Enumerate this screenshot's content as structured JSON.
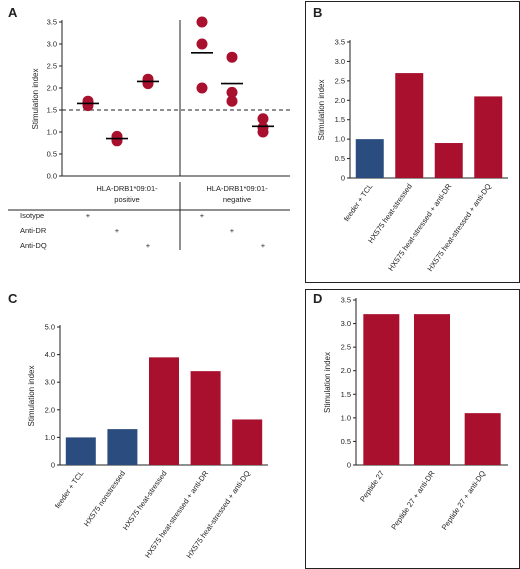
{
  "colors": {
    "red": "#a8102e",
    "blue": "#2b4c7e",
    "axis": "#222222"
  },
  "chart_data": [
    {
      "panel": "A",
      "type": "scatter",
      "ylabel": "Stimulation index",
      "ylim": [
        0,
        3.5
      ],
      "yticks": [
        "0.0",
        "0.5",
        "1.0",
        "1.5",
        "2.0",
        "2.5",
        "3.0",
        "3.5"
      ],
      "threshold": 1.5,
      "groups": [
        "HLA-DRB1*09:01-positive",
        "HLA-DRB1*09:01-negative"
      ],
      "row_labels": [
        "Isotype",
        "Anti-DR",
        "Anti-DQ"
      ],
      "plus": "+",
      "series": [
        {
          "group": 0,
          "treatment": 0,
          "points": [
            1.6,
            1.65,
            1.7
          ],
          "mean": 1.65
        },
        {
          "group": 0,
          "treatment": 1,
          "points": [
            0.8,
            0.85,
            0.9
          ],
          "mean": 0.85
        },
        {
          "group": 0,
          "treatment": 2,
          "points": [
            2.1,
            2.15,
            2.2
          ],
          "mean": 2.15
        },
        {
          "group": 1,
          "treatment": 0,
          "points": [
            3.5,
            3.0,
            2.0
          ],
          "mean": 2.8
        },
        {
          "group": 1,
          "treatment": 1,
          "points": [
            2.7,
            1.7,
            1.9
          ],
          "mean": 2.1
        },
        {
          "group": 1,
          "treatment": 2,
          "points": [
            1.3,
            1.0,
            1.1
          ],
          "mean": 1.13
        }
      ]
    },
    {
      "panel": "B",
      "type": "bar",
      "ylabel": "Stimulation index",
      "ylim": [
        0,
        3.5
      ],
      "yticks": [
        "0",
        "0.5",
        "1.0",
        "1.5",
        "2.0",
        "2.5",
        "3.0",
        "3.5"
      ],
      "categories": [
        "feeder + TCL",
        "HX575 heat-stressed",
        "HX575 heat-stressed + anti-DR",
        "HX575 heat-stressed + anti-DQ"
      ],
      "values": [
        1.0,
        2.7,
        0.9,
        2.1
      ],
      "bar_colors": [
        "blue",
        "red",
        "red",
        "red"
      ]
    },
    {
      "panel": "C",
      "type": "bar",
      "ylabel": "Stimulation index",
      "ylim": [
        0,
        5
      ],
      "yticks": [
        "0",
        "1.0",
        "2.0",
        "3.0",
        "4.0",
        "5.0"
      ],
      "categories": [
        "feeder + TCL",
        "HX575 nonstressed",
        "HX575 heat-stressed",
        "HX575 heat-stressed + anti-DR",
        "HX575 heat-stressed + anti-DQ"
      ],
      "values": [
        1.0,
        1.3,
        3.9,
        3.4,
        1.65
      ],
      "bar_colors": [
        "blue",
        "blue",
        "red",
        "red",
        "red"
      ]
    },
    {
      "panel": "D",
      "type": "bar",
      "ylabel": "Stimulation index",
      "ylim": [
        0,
        3.5
      ],
      "yticks": [
        "0",
        "0.5",
        "1.0",
        "1.5",
        "2.0",
        "2.5",
        "3.0",
        "3.5"
      ],
      "categories": [
        "Peptide 27",
        "Peptide 27 + anti-DR",
        "Peptide 27 + anti-DQ"
      ],
      "values": [
        3.2,
        3.2,
        1.1
      ],
      "bar_colors": [
        "red",
        "red",
        "red"
      ]
    }
  ]
}
